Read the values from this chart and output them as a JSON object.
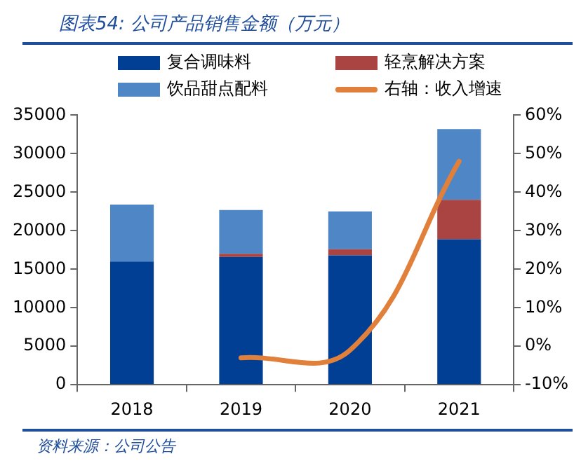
{
  "chart_data": {
    "type": "bar",
    "title": "图表54: 公司产品销售金额（万元）",
    "categories": [
      "2018",
      "2019",
      "2020",
      "2021"
    ],
    "stacked": true,
    "series": [
      {
        "name": "复合调味料",
        "color": "#003f94",
        "values": [
          16000,
          16600,
          16800,
          18900
        ]
      },
      {
        "name": "轻烹解决方案",
        "color": "#a94442",
        "values": [
          0,
          400,
          800,
          5100
        ]
      },
      {
        "name": "饮品甜点配料",
        "color": "#4f86c6",
        "values": [
          7400,
          5700,
          4900,
          9200
        ]
      },
      {
        "name": "右轴：收入增速",
        "color": "#e0803a",
        "type": "line",
        "axis": "y2",
        "values": [
          null,
          -3,
          -1,
          48
        ]
      }
    ],
    "ylim": [
      0,
      35000
    ],
    "yticks": [
      0,
      5000,
      10000,
      15000,
      20000,
      25000,
      30000,
      35000
    ],
    "y2lim": [
      -10,
      60
    ],
    "y2ticks": [
      {
        "value": -10,
        "label": "-10%"
      },
      {
        "value": 0,
        "label": "0%"
      },
      {
        "value": 10,
        "label": "10%"
      },
      {
        "value": 20,
        "label": "20%"
      },
      {
        "value": 30,
        "label": "30%"
      },
      {
        "value": 40,
        "label": "40%"
      },
      {
        "value": 50,
        "label": "50%"
      },
      {
        "value": 60,
        "label": "60%"
      }
    ],
    "grid": false,
    "legend": "top",
    "marker": "none",
    "annotations": [
      "资料来源：公司公告"
    ]
  }
}
